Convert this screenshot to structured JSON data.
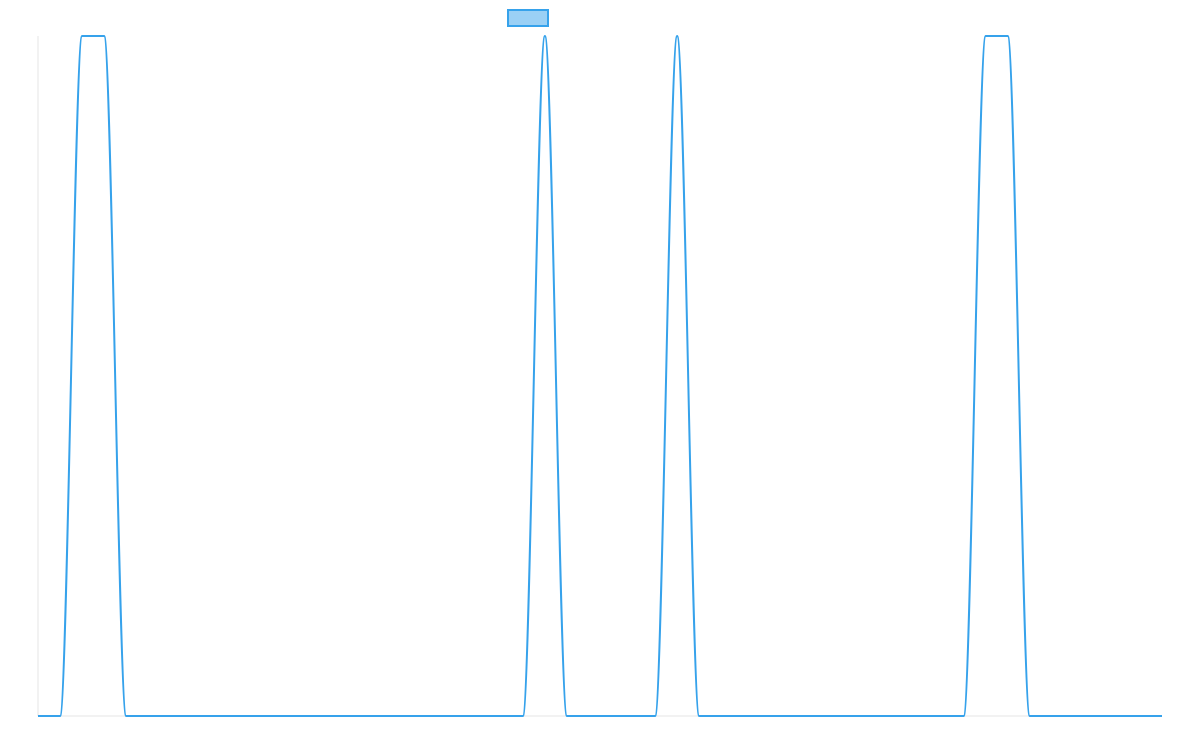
{
  "chart_data": {
    "type": "line",
    "title": "",
    "xlabel": "",
    "ylabel": "",
    "grid": false,
    "legend_position": "top-center",
    "x": [
      0,
      1,
      2,
      3,
      4,
      5,
      6,
      7,
      8,
      9,
      10,
      11,
      12,
      13,
      14,
      15,
      16,
      17,
      18,
      19,
      20,
      21,
      22,
      23,
      24,
      25,
      26,
      27,
      28,
      29,
      30,
      31,
      32,
      33,
      34,
      35,
      36,
      37,
      38,
      39,
      40,
      41,
      42,
      43,
      44,
      45,
      46,
      47,
      48,
      49,
      50,
      51
    ],
    "series": [
      {
        "name": "",
        "color": "#36a2eb",
        "fill": "#9ad0f5",
        "values": [
          0,
          0,
          1,
          1,
          0,
          0,
          0,
          0,
          0,
          0,
          0,
          0,
          0,
          0,
          0,
          0,
          0,
          0,
          0,
          0,
          0,
          0,
          0,
          1,
          0,
          0,
          0,
          0,
          0,
          1,
          0,
          0,
          0,
          0,
          0,
          0,
          0,
          0,
          0,
          0,
          0,
          0,
          0,
          1,
          1,
          0,
          0,
          0,
          0,
          0,
          0,
          0
        ]
      }
    ],
    "ylim": [
      0,
      1
    ]
  }
}
